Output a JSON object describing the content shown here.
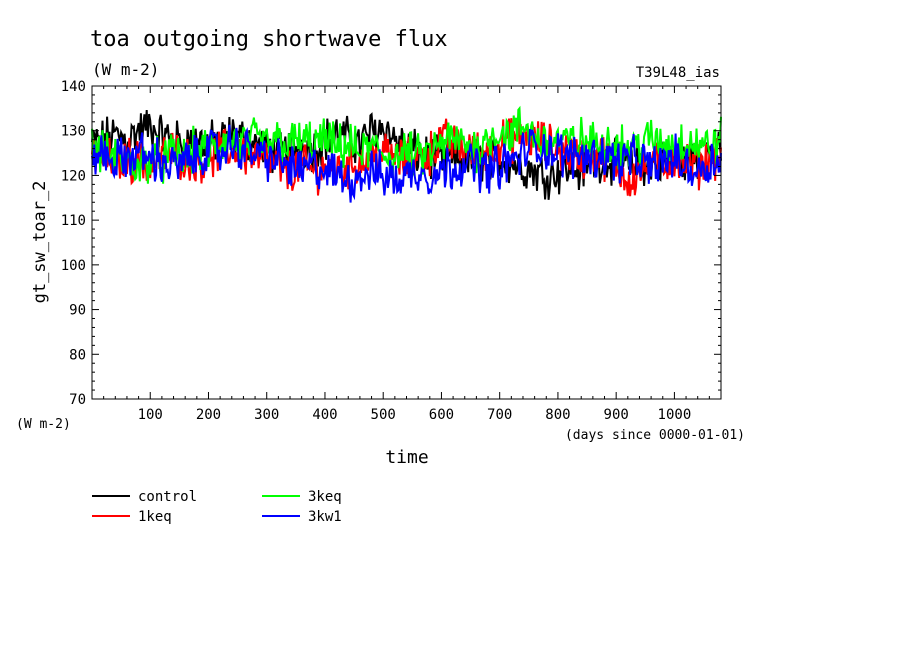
{
  "chart_data": {
    "type": "line",
    "title": "toa outgoing shortwave flux",
    "subtitle": "(W m-2)",
    "run_label": "T39L48_ias",
    "ylabel": "gt_sw_toar_2",
    "yunit": "(W m-2)",
    "xlabel": "time",
    "xunit": "(days since 0000-01-01)",
    "xlim": [
      0,
      1080
    ],
    "ylim": [
      70,
      140
    ],
    "xticks": [
      100,
      200,
      300,
      400,
      500,
      600,
      700,
      800,
      900,
      1000
    ],
    "xtick_labels": [
      "100",
      "200",
      "300",
      "400",
      "500",
      "600",
      "700",
      "800",
      "900",
      "1000"
    ],
    "yticks": [
      70,
      80,
      90,
      100,
      110,
      120,
      130,
      140
    ],
    "ytick_labels": [
      "70",
      "80",
      "90",
      "100",
      "110",
      "120",
      "130",
      "140"
    ],
    "grid": false,
    "legend_placement": "bottom",
    "series": [
      {
        "name": "control",
        "color": "#000000",
        "x": [
          0,
          20,
          40,
          60,
          80,
          100,
          120,
          140,
          160,
          180,
          200,
          220,
          240,
          260,
          280,
          300,
          320,
          340,
          360,
          380,
          400,
          420,
          440,
          460,
          480,
          500,
          520,
          540,
          560,
          580,
          600,
          620,
          640,
          660,
          680,
          700,
          720,
          740,
          760,
          780,
          800,
          820,
          840,
          860,
          880,
          900,
          920,
          940,
          960,
          980,
          1000,
          1020,
          1040,
          1060,
          1080
        ],
        "values": [
          127,
          128,
          129,
          128,
          130,
          131,
          129,
          128,
          127,
          128,
          127,
          128,
          129,
          128,
          127,
          126,
          125,
          126,
          127,
          126,
          128,
          129,
          128,
          127,
          130,
          131,
          128,
          126,
          125,
          124,
          123,
          124,
          123,
          124,
          123,
          124,
          123,
          122,
          121,
          120,
          121,
          122,
          121,
          123,
          124,
          123,
          122,
          123,
          122,
          123,
          124,
          123,
          124,
          125,
          124
        ]
      },
      {
        "name": "1keq",
        "color": "#ff0000",
        "x": [
          0,
          20,
          40,
          60,
          80,
          100,
          120,
          140,
          160,
          180,
          200,
          220,
          240,
          260,
          280,
          300,
          320,
          340,
          360,
          380,
          400,
          420,
          440,
          460,
          480,
          500,
          520,
          540,
          560,
          580,
          600,
          620,
          640,
          660,
          680,
          700,
          720,
          740,
          760,
          780,
          800,
          820,
          840,
          860,
          880,
          900,
          920,
          940,
          960,
          980,
          1000,
          1020,
          1040,
          1060,
          1080
        ],
        "values": [
          125,
          124,
          123,
          124,
          123,
          122,
          124,
          125,
          124,
          123,
          124,
          125,
          126,
          125,
          124,
          123,
          122,
          121,
          122,
          121,
          122,
          121,
          122,
          123,
          124,
          125,
          124,
          123,
          124,
          125,
          128,
          127,
          126,
          125,
          126,
          127,
          128,
          129,
          128,
          127,
          126,
          125,
          124,
          125,
          124,
          122,
          119,
          121,
          122,
          123,
          124,
          123,
          122,
          124,
          125
        ]
      },
      {
        "name": "3keq",
        "color": "#00ff00",
        "x": [
          0,
          20,
          40,
          60,
          80,
          100,
          120,
          140,
          160,
          180,
          200,
          220,
          240,
          260,
          280,
          300,
          320,
          340,
          360,
          380,
          400,
          420,
          440,
          460,
          480,
          500,
          520,
          540,
          560,
          580,
          600,
          620,
          640,
          660,
          680,
          700,
          720,
          740,
          760,
          780,
          800,
          820,
          840,
          860,
          880,
          900,
          920,
          940,
          960,
          980,
          1000,
          1020,
          1040,
          1060,
          1080
        ],
        "values": [
          126,
          125,
          124,
          123,
          122,
          124,
          123,
          125,
          124,
          126,
          125,
          127,
          128,
          127,
          128,
          127,
          128,
          127,
          128,
          127,
          128,
          126,
          127,
          125,
          126,
          125,
          124,
          125,
          124,
          125,
          127,
          128,
          127,
          126,
          128,
          130,
          129,
          131,
          129,
          127,
          128,
          127,
          128,
          127,
          128,
          127,
          126,
          127,
          128,
          127,
          127,
          128,
          127,
          126,
          128
        ]
      },
      {
        "name": "3kw1",
        "color": "#0000ff",
        "x": [
          0,
          20,
          40,
          60,
          80,
          100,
          120,
          140,
          160,
          180,
          200,
          220,
          240,
          260,
          280,
          300,
          320,
          340,
          360,
          380,
          400,
          420,
          440,
          460,
          480,
          500,
          520,
          540,
          560,
          580,
          600,
          620,
          640,
          660,
          680,
          700,
          720,
          740,
          760,
          780,
          800,
          820,
          840,
          860,
          880,
          900,
          920,
          940,
          960,
          980,
          1000,
          1020,
          1040,
          1060,
          1080
        ],
        "values": [
          124,
          125,
          123,
          124,
          125,
          124,
          123,
          122,
          123,
          124,
          126,
          125,
          127,
          126,
          125,
          124,
          123,
          122,
          121,
          122,
          121,
          120,
          119,
          120,
          121,
          120,
          119,
          120,
          121,
          120,
          121,
          122,
          123,
          122,
          121,
          122,
          123,
          125,
          127,
          126,
          125,
          124,
          125,
          124,
          125,
          123,
          124,
          123,
          122,
          123,
          124,
          122,
          121,
          123,
          124
        ]
      }
    ]
  }
}
